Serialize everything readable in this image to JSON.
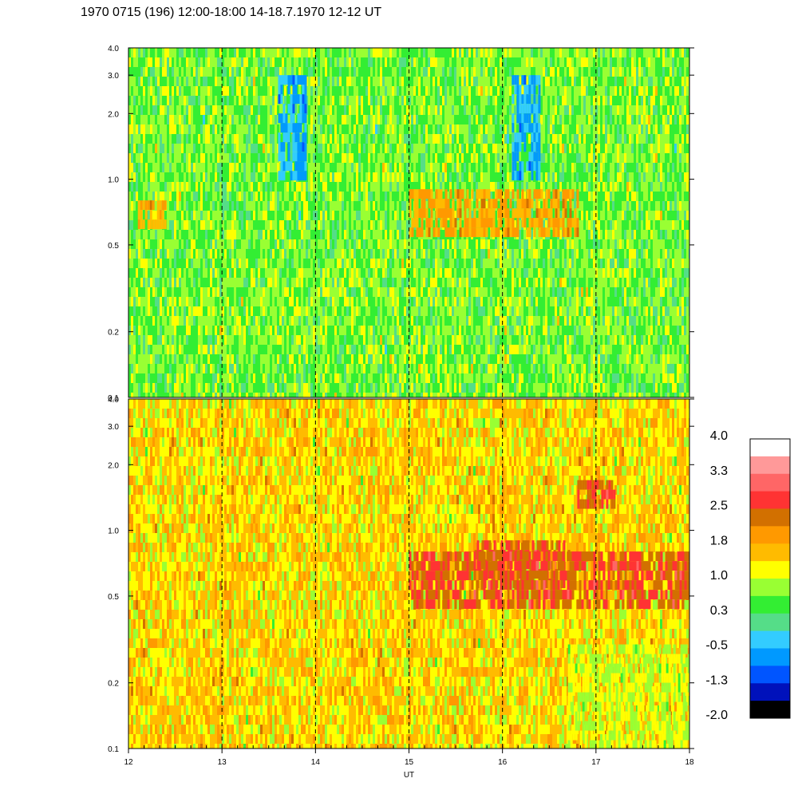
{
  "title": "1970 0715 (196) 12:00-18:00 14-18.7.1970  12-12 UT",
  "chart_data": [
    {
      "type": "heatmap",
      "panel": "upper",
      "xlabel": "",
      "ylabel": "",
      "x_range": [
        12,
        18
      ],
      "y_range": [
        0.1,
        4.0
      ],
      "y_scale": "log",
      "y_ticks": [
        "4.0",
        "3.0",
        "2.0",
        "1.0",
        "0.5",
        "0.2",
        "0.1"
      ],
      "vertical_dashed_gridlines_at": [
        13,
        14,
        15,
        16,
        17
      ],
      "dominant_levels": [
        0.3,
        1.0
      ],
      "features": [
        {
          "x": [
            13.6,
            13.9
          ],
          "y": [
            1.0,
            3.0
          ],
          "level": -0.5
        },
        {
          "x": [
            16.1,
            16.4
          ],
          "y": [
            1.0,
            3.0
          ],
          "level": -0.5
        },
        {
          "x": [
            12.1,
            12.4
          ],
          "y": [
            0.6,
            0.8
          ],
          "level": 1.8
        },
        {
          "x": [
            15.0,
            16.8
          ],
          "y": [
            0.6,
            0.9
          ],
          "level": 1.8
        }
      ]
    },
    {
      "type": "heatmap",
      "panel": "lower",
      "xlabel": "UT",
      "ylabel": "",
      "x_range": [
        12,
        18
      ],
      "x_ticks": [
        "12",
        "13",
        "14",
        "15",
        "16",
        "17",
        "18"
      ],
      "y_range": [
        0.1,
        4.0
      ],
      "y_scale": "log",
      "y_ticks": [
        "4.0",
        "3.0",
        "2.0",
        "1.0",
        "0.5",
        "0.2",
        "0.1"
      ],
      "vertical_dashed_gridlines_at": [
        13,
        14,
        15,
        16,
        17
      ],
      "dominant_levels": [
        1.0,
        1.8
      ],
      "features": [
        {
          "x": [
            15.7,
            16.7
          ],
          "y": [
            0.6,
            0.9
          ],
          "level": 2.5
        },
        {
          "x": [
            16.8,
            17.2
          ],
          "y": [
            1.3,
            1.7
          ],
          "level": 2.5
        },
        {
          "x": [
            15.0,
            18.0
          ],
          "y": [
            0.45,
            0.8
          ],
          "level": 2.5
        },
        {
          "x": [
            16.7,
            18.0
          ],
          "y": [
            0.1,
            0.3
          ],
          "level": 1.0
        }
      ]
    }
  ],
  "colorbar": {
    "labels": [
      "4.0",
      "3.3",
      "2.5",
      "1.8",
      "1.0",
      "0.3",
      "-0.5",
      "-1.3",
      "-2.0"
    ],
    "colors": [
      "#ffffff",
      "#ff9999",
      "#ff6666",
      "#ff3333",
      "#d27000",
      "#ff9900",
      "#ffbb00",
      "#ffff00",
      "#99ff33",
      "#33ee33",
      "#55dd88",
      "#33ccff",
      "#0099ff",
      "#0055ff",
      "#0011bb",
      "#000000"
    ]
  }
}
